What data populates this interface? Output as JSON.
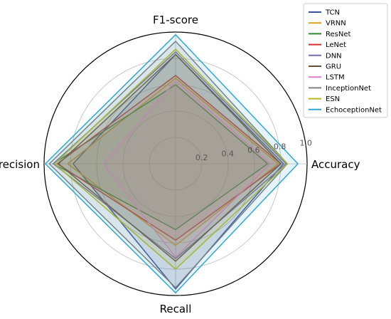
{
  "chart_data": {
    "type": "radar",
    "axes": [
      "Accuracy",
      "F1-score",
      "Precision",
      "Recall"
    ],
    "rlim": [
      0,
      1.0
    ],
    "r_ticks": [
      "0.2",
      "0.4",
      "0.6",
      "0.8",
      "1.0"
    ],
    "grid": true,
    "legend_position": "top-right",
    "series": [
      {
        "name": "TCN",
        "color": "#3a4fa0",
        "values": [
          0.82,
          0.83,
          0.78,
          0.95
        ]
      },
      {
        "name": "VRNN",
        "color": "#e0a020",
        "values": [
          0.78,
          0.65,
          0.82,
          0.62
        ]
      },
      {
        "name": "ResNet",
        "color": "#2e8b2e",
        "values": [
          0.7,
          0.6,
          0.93,
          0.5
        ]
      },
      {
        "name": "LeNet",
        "color": "#d03030",
        "values": [
          0.8,
          0.67,
          0.9,
          0.58
        ]
      },
      {
        "name": "DNN",
        "color": "#7a6bb0",
        "values": [
          0.84,
          0.85,
          0.93,
          0.72
        ]
      },
      {
        "name": "GRU",
        "color": "#6b4a3a",
        "values": [
          0.8,
          0.83,
          0.89,
          0.74
        ]
      },
      {
        "name": "LSTM",
        "color": "#e080c8",
        "values": [
          0.72,
          0.63,
          0.55,
          0.71
        ]
      },
      {
        "name": "InceptionNet",
        "color": "#808080",
        "values": [
          0.85,
          0.93,
          0.96,
          0.94
        ]
      },
      {
        "name": "ESN",
        "color": "#b8b820",
        "values": [
          0.85,
          0.87,
          0.92,
          0.8
        ]
      },
      {
        "name": "EchoceptionNet",
        "color": "#30a8d0",
        "values": [
          0.93,
          0.98,
          0.99,
          0.98
        ]
      }
    ]
  }
}
